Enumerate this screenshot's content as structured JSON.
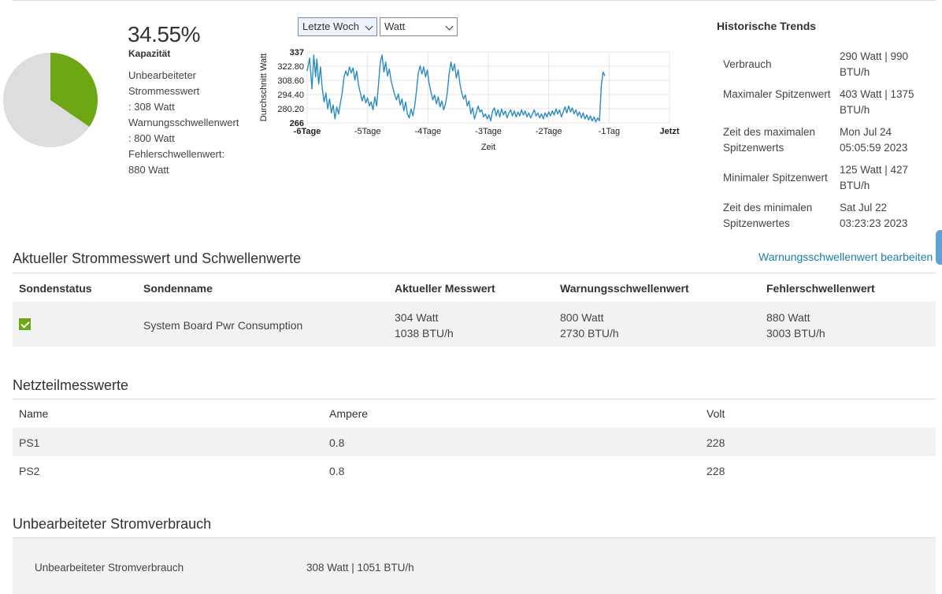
{
  "capacity": {
    "percent_text": "34.55%",
    "percent_value": 34.55,
    "label": "Kapazität",
    "details": [
      "Unbearbeiteter\nStrommesswert\n: 308 Watt",
      "Warnungsschwellenwert\n: 800 Watt",
      "Fehlerschwellenwert:\n880 Watt"
    ],
    "colors": {
      "used": "#6ea714",
      "free": "#dddddd"
    }
  },
  "controls": {
    "period_selected": "Letzte Woch",
    "unit_selected": "Watt"
  },
  "chart_data": {
    "type": "line",
    "xlabel": "Zeit",
    "ylabel": "Durchschnitt Watt",
    "ylim": [
      266,
      337
    ],
    "y_ticks": [
      "337",
      "322.80",
      "308.60",
      "294.40",
      "280.20",
      "266"
    ],
    "x_ticks": [
      "-6Tage",
      "-5Tage",
      "-4Tage",
      "-3Tage",
      "-2Tage",
      "-1Tag",
      "Jetzt"
    ],
    "xlim": [
      -6,
      0
    ],
    "grid": true,
    "line_color": "#2a8cc4",
    "series": [
      {
        "values": [
          [
            -6.0,
            318
          ],
          [
            -5.96,
            331
          ],
          [
            -5.92,
            300
          ],
          [
            -5.89,
            334
          ],
          [
            -5.86,
            312
          ],
          [
            -5.84,
            330
          ],
          [
            -5.81,
            305
          ],
          [
            -5.78,
            322
          ],
          [
            -5.75,
            300
          ],
          [
            -5.72,
            287
          ],
          [
            -5.69,
            296
          ],
          [
            -5.66,
            280
          ],
          [
            -5.63,
            290
          ],
          [
            -5.6,
            276
          ],
          [
            -5.57,
            284
          ],
          [
            -5.54,
            270
          ],
          [
            -5.51,
            282
          ],
          [
            -5.48,
            275
          ],
          [
            -5.45,
            286
          ],
          [
            -5.42,
            296
          ],
          [
            -5.39,
            312
          ],
          [
            -5.36,
            318
          ],
          [
            -5.33,
            313
          ],
          [
            -5.3,
            322
          ],
          [
            -5.27,
            316
          ],
          [
            -5.24,
            321
          ],
          [
            -5.21,
            309
          ],
          [
            -5.18,
            318
          ],
          [
            -5.15,
            304
          ],
          [
            -5.12,
            296
          ],
          [
            -5.09,
            288
          ],
          [
            -5.06,
            294
          ],
          [
            -5.03,
            286
          ],
          [
            -5.0,
            291
          ],
          [
            -4.97,
            283
          ],
          [
            -4.94,
            287
          ],
          [
            -4.91,
            279
          ],
          [
            -4.88,
            292
          ],
          [
            -4.85,
            283
          ],
          [
            -4.82,
            304
          ],
          [
            -4.79,
            326
          ],
          [
            -4.76,
            334
          ],
          [
            -4.73,
            317
          ],
          [
            -4.7,
            327
          ],
          [
            -4.67,
            313
          ],
          [
            -4.64,
            320
          ],
          [
            -4.61,
            308
          ],
          [
            -4.58,
            301
          ],
          [
            -4.55,
            294
          ],
          [
            -4.52,
            289
          ],
          [
            -4.49,
            295
          ],
          [
            -4.46,
            284
          ],
          [
            -4.43,
            290
          ],
          [
            -4.4,
            278
          ],
          [
            -4.37,
            287
          ],
          [
            -4.34,
            275
          ],
          [
            -4.31,
            271
          ],
          [
            -4.28,
            280
          ],
          [
            -4.25,
            273
          ],
          [
            -4.22,
            283
          ],
          [
            -4.19,
            298
          ],
          [
            -4.16,
            316
          ],
          [
            -4.13,
            323
          ],
          [
            -4.1,
            315
          ],
          [
            -4.07,
            322
          ],
          [
            -4.04,
            312
          ],
          [
            -4.01,
            319
          ],
          [
            -3.98,
            305
          ],
          [
            -3.95,
            297
          ],
          [
            -3.92,
            289
          ],
          [
            -3.89,
            294
          ],
          [
            -3.86,
            285
          ],
          [
            -3.83,
            292
          ],
          [
            -3.8,
            282
          ],
          [
            -3.77,
            288
          ],
          [
            -3.74,
            279
          ],
          [
            -3.71,
            285
          ],
          [
            -3.68,
            296
          ],
          [
            -3.65,
            315
          ],
          [
            -3.62,
            327
          ],
          [
            -3.59,
            318
          ],
          [
            -3.56,
            325
          ],
          [
            -3.53,
            311
          ],
          [
            -3.5,
            319
          ],
          [
            -3.47,
            305
          ],
          [
            -3.44,
            296
          ],
          [
            -3.41,
            290
          ],
          [
            -3.38,
            294
          ],
          [
            -3.35,
            283
          ],
          [
            -3.32,
            288
          ],
          [
            -3.29,
            275
          ],
          [
            -3.26,
            281
          ],
          [
            -3.23,
            270
          ],
          [
            -3.2,
            276
          ],
          [
            -3.17,
            283
          ],
          [
            -3.14,
            277
          ],
          [
            -3.11,
            279
          ],
          [
            -3.08,
            272
          ],
          [
            -3.05,
            275
          ],
          [
            -3.02,
            270
          ],
          [
            -2.99,
            274
          ],
          [
            -2.96,
            268
          ],
          [
            -2.93,
            278
          ],
          [
            -2.9,
            281
          ],
          [
            -2.87,
            273
          ],
          [
            -2.84,
            279
          ],
          [
            -2.81,
            272
          ],
          [
            -2.78,
            280
          ],
          [
            -2.75,
            274
          ],
          [
            -2.72,
            278
          ],
          [
            -2.69,
            271
          ],
          [
            -2.66,
            276
          ],
          [
            -2.63,
            279
          ],
          [
            -2.6,
            273
          ],
          [
            -2.57,
            278
          ],
          [
            -2.54,
            272
          ],
          [
            -2.51,
            277
          ],
          [
            -2.48,
            273
          ],
          [
            -2.45,
            279
          ],
          [
            -2.42,
            274
          ],
          [
            -2.39,
            278
          ],
          [
            -2.36,
            272
          ],
          [
            -2.33,
            276
          ],
          [
            -2.3,
            271
          ],
          [
            -2.27,
            275
          ],
          [
            -2.24,
            279
          ],
          [
            -2.21,
            273
          ],
          [
            -2.18,
            276
          ],
          [
            -2.15,
            271
          ],
          [
            -2.12,
            275
          ],
          [
            -2.09,
            270
          ],
          [
            -2.06,
            276
          ],
          [
            -2.03,
            272
          ],
          [
            -2.0,
            277
          ],
          [
            -1.97,
            273
          ],
          [
            -1.94,
            278
          ],
          [
            -1.91,
            274
          ],
          [
            -1.88,
            280
          ],
          [
            -1.85,
            275
          ],
          [
            -1.82,
            279
          ],
          [
            -1.79,
            272
          ],
          [
            -1.76,
            277
          ],
          [
            -1.73,
            282
          ],
          [
            -1.7,
            276
          ],
          [
            -1.67,
            283
          ],
          [
            -1.64,
            277
          ],
          [
            -1.61,
            281
          ],
          [
            -1.58,
            275
          ],
          [
            -1.55,
            279
          ],
          [
            -1.52,
            273
          ],
          [
            -1.49,
            277
          ],
          [
            -1.46,
            271
          ],
          [
            -1.43,
            276
          ],
          [
            -1.4,
            270
          ],
          [
            -1.37,
            274
          ],
          [
            -1.34,
            269
          ],
          [
            -1.31,
            273
          ],
          [
            -1.28,
            268
          ],
          [
            -1.25,
            272
          ],
          [
            -1.22,
            267
          ],
          [
            -1.19,
            271
          ],
          [
            -1.16,
            268
          ],
          [
            -1.13,
            303
          ],
          [
            -1.1,
            317
          ],
          [
            -1.07,
            313
          ]
        ]
      }
    ]
  },
  "history": {
    "title": "Historische Trends",
    "rows": [
      {
        "label": "Verbrauch",
        "value": "290 Watt | 990 BTU/h"
      },
      {
        "label": "Maximaler Spitzenwert",
        "value": "403 Watt | 1375 BTU/h"
      },
      {
        "label": "Zeit des maximalen Spitzenwerts",
        "value": "Mon Jul 24 05:05:59 2023"
      },
      {
        "label": "Minimaler Spitzenwert",
        "value": "125 Watt | 427 BTU/h"
      },
      {
        "label": "Zeit des minimalen Spitzenwertes",
        "value": "Sat Jul 22 03:23:23 2023"
      }
    ]
  },
  "current_section": {
    "title": "Aktueller Strommesswert und Schwellenwerte",
    "edit_link": "Warnungsschwellenwert bearbeiten",
    "headers": [
      "Sondenstatus",
      "Sondenname",
      "Aktueller Messwert",
      "Warnungsschwellenwert",
      "Fehlerschwellenwert"
    ],
    "row": {
      "status": "ok",
      "name": "System Board Pwr Consumption",
      "current": [
        "304 Watt",
        "1038 BTU/h"
      ],
      "warning": [
        "800 Watt",
        "2730 BTU/h"
      ],
      "error": [
        "880 Watt",
        "3003 BTU/h"
      ]
    }
  },
  "psu_section": {
    "title": "Netzteilmesswerte",
    "headers": [
      "Name",
      "Ampere",
      "Volt"
    ],
    "rows": [
      [
        "PS1",
        "0.8",
        "228"
      ],
      [
        "PS2",
        "0.8",
        "228"
      ]
    ]
  },
  "raw_section": {
    "title": "Unbearbeiteter Stromverbrauch",
    "label": "Unbearbeiteter Stromverbrauch",
    "value": "308 Watt | 1051 BTU/h"
  }
}
